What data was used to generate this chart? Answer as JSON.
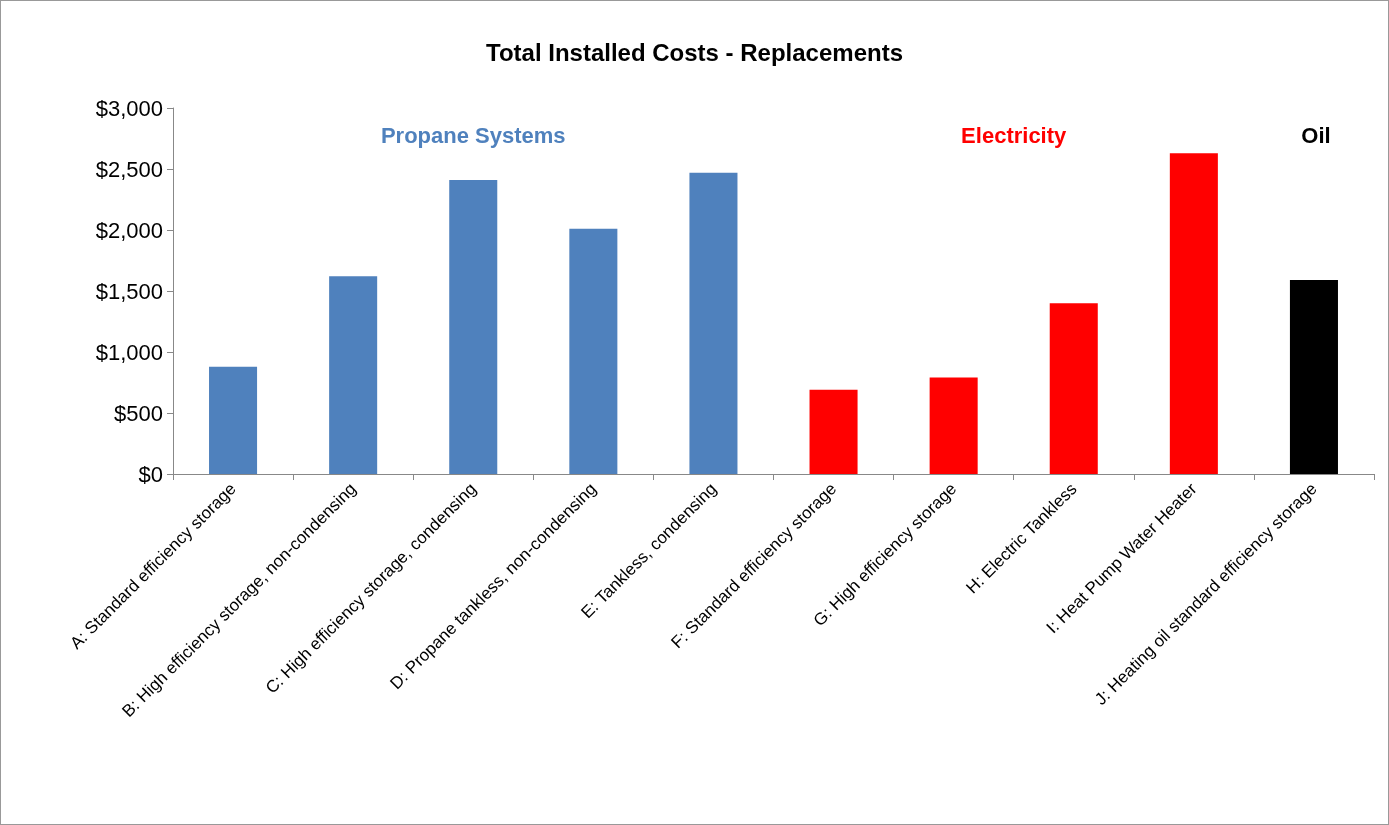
{
  "chart_data": {
    "type": "bar",
    "title": "Total Installed Costs - Replacements",
    "categories": [
      "A: Standard efficiency storage",
      "B: High efficiency storage, non-condensing",
      "C: High efficiency storage, condensing",
      "D: Propane tankless, non-condensing",
      "E: Tankless, condensing",
      "F: Standard efficiency storage",
      "G: High efficiency storage",
      "H: Electric Tankless",
      "I: Heat Pump Water Heater",
      "J: Heating oil standard efficiency storage"
    ],
    "values": [
      880,
      1620,
      2410,
      2010,
      2470,
      690,
      790,
      1400,
      2630,
      1590
    ],
    "colors": [
      "#4f81bd",
      "#4f81bd",
      "#4f81bd",
      "#4f81bd",
      "#4f81bd",
      "#ff0000",
      "#ff0000",
      "#ff0000",
      "#ff0000",
      "#000000"
    ],
    "annotations": [
      "Propane Systems",
      "Electricity",
      "Oil"
    ],
    "ylim": [
      0,
      3000
    ],
    "yticks": [
      {
        "value": 0,
        "label": "$0"
      },
      {
        "value": 500,
        "label": "$500"
      },
      {
        "value": 1000,
        "label": "$1,000"
      },
      {
        "value": 1500,
        "label": "$1,500"
      },
      {
        "value": 2000,
        "label": "$2,000"
      },
      {
        "value": 2500,
        "label": "$2,500"
      },
      {
        "value": 3000,
        "label": "$3,000"
      }
    ],
    "grid": false
  }
}
